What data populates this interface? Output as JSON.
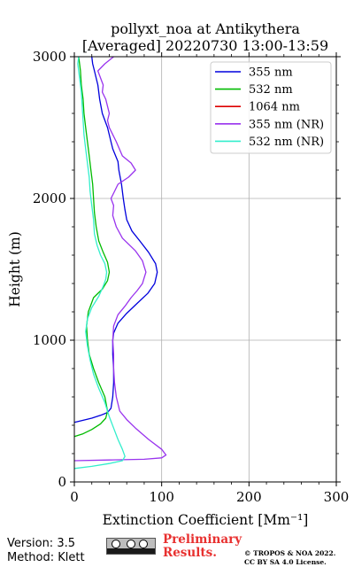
{
  "chart_data": {
    "type": "line",
    "title_line1": "pollyxt_noa at Antikythera",
    "title_line2": "[Averaged] 20220730 13:00-13:59",
    "xlabel": "Extinction Coefficient [Mm⁻¹]",
    "ylabel": "Height (m)",
    "xlim": [
      0,
      300
    ],
    "ylim": [
      0,
      3000
    ],
    "xticks": [
      "0",
      "100",
      "200",
      "300"
    ],
    "yticks": [
      "0",
      "1000",
      "2000",
      "3000"
    ],
    "grid": true,
    "legend_position": "top-right",
    "series": [
      {
        "name": "355 nm",
        "color": "#0000dd",
        "points": [
          [
            0,
            420
          ],
          [
            10,
            435
          ],
          [
            20,
            450
          ],
          [
            30,
            470
          ],
          [
            38,
            490
          ],
          [
            42,
            520
          ],
          [
            44,
            600
          ],
          [
            45,
            700
          ],
          [
            45,
            800
          ],
          [
            44,
            900
          ],
          [
            44,
            1000
          ],
          [
            45,
            1050
          ],
          [
            50,
            1120
          ],
          [
            60,
            1190
          ],
          [
            72,
            1260
          ],
          [
            84,
            1330
          ],
          [
            92,
            1400
          ],
          [
            95,
            1480
          ],
          [
            93,
            1540
          ],
          [
            85,
            1620
          ],
          [
            75,
            1700
          ],
          [
            66,
            1770
          ],
          [
            60,
            1850
          ],
          [
            58,
            1920
          ],
          [
            56,
            2000
          ],
          [
            54,
            2100
          ],
          [
            51,
            2200
          ],
          [
            50,
            2260
          ],
          [
            44,
            2350
          ],
          [
            42,
            2400
          ],
          [
            38,
            2500
          ],
          [
            32,
            2600
          ],
          [
            29,
            2700
          ],
          [
            27,
            2800
          ],
          [
            23,
            2900
          ],
          [
            21,
            2950
          ],
          [
            20,
            3000
          ]
        ]
      },
      {
        "name": "532 nm",
        "color": "#00bb00",
        "points": [
          [
            0,
            320
          ],
          [
            10,
            340
          ],
          [
            20,
            370
          ],
          [
            30,
            410
          ],
          [
            36,
            450
          ],
          [
            38,
            500
          ],
          [
            35,
            600
          ],
          [
            28,
            700
          ],
          [
            22,
            800
          ],
          [
            17,
            900
          ],
          [
            15,
            1000
          ],
          [
            14,
            1100
          ],
          [
            16,
            1200
          ],
          [
            22,
            1300
          ],
          [
            32,
            1360
          ],
          [
            38,
            1420
          ],
          [
            40,
            1480
          ],
          [
            38,
            1550
          ],
          [
            33,
            1620
          ],
          [
            28,
            1700
          ],
          [
            25,
            1800
          ],
          [
            23,
            1900
          ],
          [
            22,
            2000
          ],
          [
            21,
            2100
          ],
          [
            19,
            2200
          ],
          [
            17,
            2300
          ],
          [
            15,
            2400
          ],
          [
            13,
            2500
          ],
          [
            11,
            2600
          ],
          [
            10,
            2700
          ],
          [
            8,
            2800
          ],
          [
            7,
            2900
          ],
          [
            5,
            3000
          ]
        ]
      },
      {
        "name": "1064 nm",
        "color": "#dd0000",
        "points": []
      },
      {
        "name": "355 nm (NR)",
        "color": "#9933ee",
        "points": [
          [
            0,
            150
          ],
          [
            40,
            155
          ],
          [
            80,
            160
          ],
          [
            100,
            170
          ],
          [
            105,
            190
          ],
          [
            100,
            230
          ],
          [
            85,
            300
          ],
          [
            70,
            380
          ],
          [
            60,
            440
          ],
          [
            52,
            500
          ],
          [
            48,
            600
          ],
          [
            46,
            700
          ],
          [
            45,
            800
          ],
          [
            45,
            900
          ],
          [
            44,
            1000
          ],
          [
            45,
            1100
          ],
          [
            50,
            1180
          ],
          [
            58,
            1240
          ],
          [
            65,
            1300
          ],
          [
            72,
            1350
          ],
          [
            78,
            1400
          ],
          [
            80,
            1440
          ],
          [
            82,
            1480
          ],
          [
            80,
            1520
          ],
          [
            78,
            1560
          ],
          [
            70,
            1630
          ],
          [
            55,
            1720
          ],
          [
            48,
            1800
          ],
          [
            44,
            1880
          ],
          [
            45,
            1950
          ],
          [
            42,
            2000
          ],
          [
            46,
            2050
          ],
          [
            50,
            2100
          ],
          [
            62,
            2150
          ],
          [
            70,
            2200
          ],
          [
            65,
            2250
          ],
          [
            55,
            2300
          ],
          [
            48,
            2400
          ],
          [
            40,
            2500
          ],
          [
            38,
            2550
          ],
          [
            40,
            2600
          ],
          [
            36,
            2700
          ],
          [
            32,
            2750
          ],
          [
            33,
            2800
          ],
          [
            30,
            2850
          ],
          [
            27,
            2900
          ],
          [
            35,
            2950
          ],
          [
            45,
            3000
          ]
        ]
      },
      {
        "name": "532 nm (NR)",
        "color": "#33eecc",
        "points": [
          [
            0,
            95
          ],
          [
            20,
            110
          ],
          [
            40,
            130
          ],
          [
            55,
            150
          ],
          [
            58,
            180
          ],
          [
            55,
            230
          ],
          [
            50,
            300
          ],
          [
            45,
            380
          ],
          [
            40,
            460
          ],
          [
            35,
            560
          ],
          [
            28,
            660
          ],
          [
            22,
            760
          ],
          [
            18,
            860
          ],
          [
            15,
            960
          ],
          [
            13,
            1060
          ],
          [
            15,
            1150
          ],
          [
            20,
            1230
          ],
          [
            28,
            1310
          ],
          [
            33,
            1380
          ],
          [
            36,
            1430
          ],
          [
            37,
            1480
          ],
          [
            35,
            1540
          ],
          [
            30,
            1600
          ],
          [
            26,
            1670
          ],
          [
            23,
            1750
          ],
          [
            22,
            1850
          ],
          [
            20,
            1950
          ],
          [
            18,
            2050
          ],
          [
            17,
            2150
          ],
          [
            15,
            2250
          ],
          [
            13,
            2350
          ],
          [
            11,
            2450
          ],
          [
            10,
            2550
          ],
          [
            9,
            2650
          ],
          [
            8,
            2750
          ],
          [
            6,
            2850
          ],
          [
            4,
            2950
          ],
          [
            5,
            3000
          ]
        ]
      }
    ]
  },
  "footer": {
    "version": "Version: 3.5",
    "method": "Method: Klett",
    "preliminary_line1": "Preliminary",
    "preliminary_line2": "Results.",
    "copyright_line1": "© TROPOS & NOA 2022.",
    "copyright_line2": "CC BY SA 4.0 License.",
    "license_badge": "cc-by-sa-icon"
  }
}
